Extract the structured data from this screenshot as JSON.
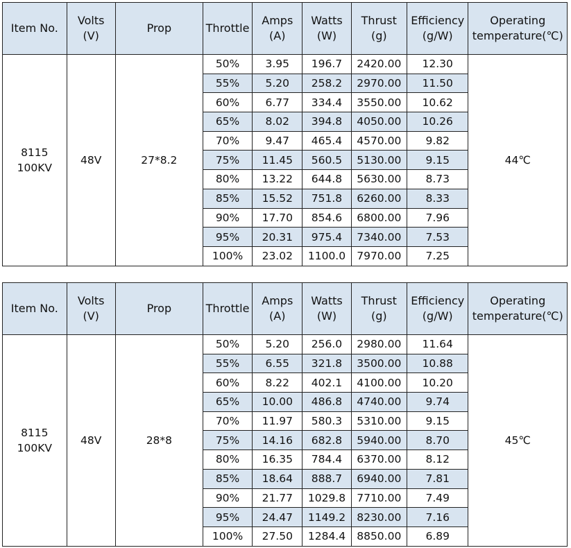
{
  "headers": {
    "item": [
      "Item No."
    ],
    "volts": [
      "Volts",
      "(V)"
    ],
    "prop": [
      "Prop"
    ],
    "throttle": [
      "Throttle"
    ],
    "amps": [
      "Amps",
      "(A)"
    ],
    "watts": [
      "Watts",
      "(W)"
    ],
    "thrust": [
      "Thrust",
      "(g)"
    ],
    "efficiency": [
      "Efficiency",
      "(g/W)"
    ],
    "temp": [
      "Operating",
      "temperature(℃)"
    ]
  },
  "colors": {
    "header_bg": "#d8e4f0",
    "band_bg": "#d8e4f0",
    "border": "#222222"
  },
  "tables": [
    {
      "item": [
        "8115",
        "100KV"
      ],
      "volts": "48V",
      "prop": "27*8.2",
      "temperature": "44℃",
      "rows": [
        [
          "50%",
          "3.95",
          "196.7",
          "2420.00",
          "12.30"
        ],
        [
          "55%",
          "5.20",
          "258.2",
          "2970.00",
          "11.50"
        ],
        [
          "60%",
          "6.77",
          "334.4",
          "3550.00",
          "10.62"
        ],
        [
          "65%",
          "8.02",
          "394.8",
          "4050.00",
          "10.26"
        ],
        [
          "70%",
          "9.47",
          "465.4",
          "4570.00",
          "9.82"
        ],
        [
          "75%",
          "11.45",
          "560.5",
          "5130.00",
          "9.15"
        ],
        [
          "80%",
          "13.22",
          "644.8",
          "5630.00",
          "8.73"
        ],
        [
          "85%",
          "15.52",
          "751.8",
          "6260.00",
          "8.33"
        ],
        [
          "90%",
          "17.70",
          "854.6",
          "6800.00",
          "7.96"
        ],
        [
          "95%",
          "20.31",
          "975.4",
          "7340.00",
          "7.53"
        ],
        [
          "100%",
          "23.02",
          "1100.0",
          "7970.00",
          "7.25"
        ]
      ]
    },
    {
      "item": [
        "8115",
        "100KV"
      ],
      "volts": "48V",
      "prop": "28*8",
      "temperature": "45℃",
      "rows": [
        [
          "50%",
          "5.20",
          "256.0",
          "2980.00",
          "11.64"
        ],
        [
          "55%",
          "6.55",
          "321.8",
          "3500.00",
          "10.88"
        ],
        [
          "60%",
          "8.22",
          "402.1",
          "4100.00",
          "10.20"
        ],
        [
          "65%",
          "10.00",
          "486.8",
          "4740.00",
          "9.74"
        ],
        [
          "70%",
          "11.97",
          "580.3",
          "5310.00",
          "9.15"
        ],
        [
          "75%",
          "14.16",
          "682.8",
          "5940.00",
          "8.70"
        ],
        [
          "80%",
          "16.35",
          "784.4",
          "6370.00",
          "8.12"
        ],
        [
          "85%",
          "18.64",
          "888.7",
          "6940.00",
          "7.81"
        ],
        [
          "90%",
          "21.77",
          "1029.8",
          "7710.00",
          "7.49"
        ],
        [
          "95%",
          "24.47",
          "1149.2",
          "8230.00",
          "7.16"
        ],
        [
          "100%",
          "27.50",
          "1284.4",
          "8850.00",
          "6.89"
        ]
      ]
    }
  ]
}
